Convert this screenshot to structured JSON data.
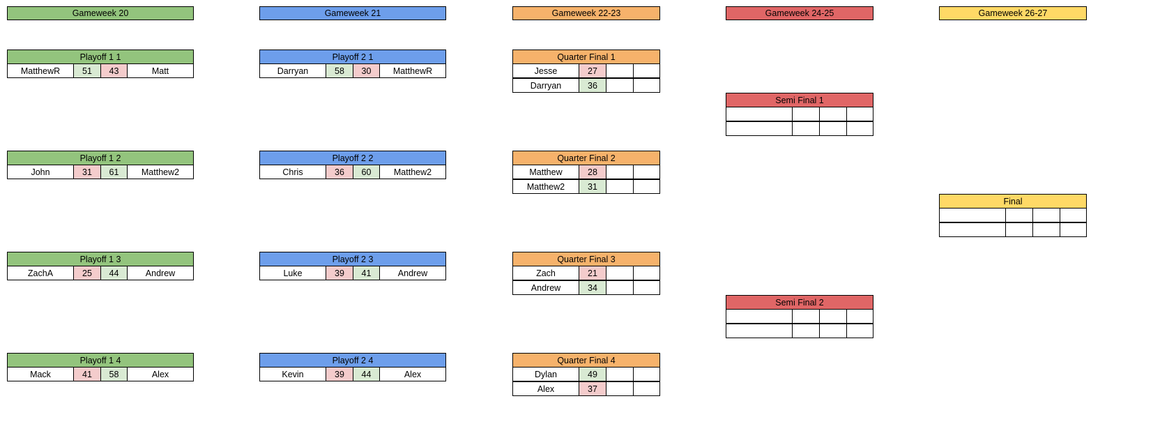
{
  "columns": [
    {
      "header": "Gameweek 20",
      "matches": [
        {
          "title": "Playoff 1 1",
          "home": "MatthewR",
          "home_score": 51,
          "away_score": 43,
          "away": "Matt"
        },
        {
          "title": "Playoff 1 2",
          "home": "John",
          "home_score": 31,
          "away_score": 61,
          "away": "Matthew2"
        },
        {
          "title": "Playoff 1 3",
          "home": "ZachA",
          "home_score": 25,
          "away_score": 44,
          "away": "Andrew"
        },
        {
          "title": "Playoff 1 4",
          "home": "Mack",
          "home_score": 41,
          "away_score": 58,
          "away": "Alex"
        }
      ]
    },
    {
      "header": "Gameweek 21",
      "matches": [
        {
          "title": "Playoff 2 1",
          "home": "Darryan",
          "home_score": 58,
          "away_score": 30,
          "away": "MatthewR"
        },
        {
          "title": "Playoff 2 2",
          "home": "Chris",
          "home_score": 36,
          "away_score": 60,
          "away": "Matthew2"
        },
        {
          "title": "Playoff 2 3",
          "home": "Luke",
          "home_score": 39,
          "away_score": 41,
          "away": "Andrew"
        },
        {
          "title": "Playoff 2 4",
          "home": "Kevin",
          "home_score": 39,
          "away_score": 44,
          "away": "Alex"
        }
      ]
    },
    {
      "header": "Gameweek 22-23",
      "matches": [
        {
          "title": "Quarter Final 1",
          "rows": [
            {
              "name": "Jesse",
              "score": 27
            },
            {
              "name": "Darryan",
              "score": 36
            }
          ]
        },
        {
          "title": "Quarter Final 2",
          "rows": [
            {
              "name": "Matthew",
              "score": 28
            },
            {
              "name": "Matthew2",
              "score": 31
            }
          ]
        },
        {
          "title": "Quarter Final 3",
          "rows": [
            {
              "name": "Zach",
              "score": 21
            },
            {
              "name": "Andrew",
              "score": 34
            }
          ]
        },
        {
          "title": "Quarter Final 4",
          "rows": [
            {
              "name": "Dylan",
              "score": 49
            },
            {
              "name": "Alex",
              "score": 37
            }
          ]
        }
      ]
    },
    {
      "header": "Gameweek 24-25",
      "matches": [
        {
          "title": "Semi Final 1"
        },
        {
          "title": "Semi Final 2"
        }
      ]
    },
    {
      "header": "Gameweek 26-27",
      "matches": [
        {
          "title": "Final"
        }
      ]
    }
  ]
}
